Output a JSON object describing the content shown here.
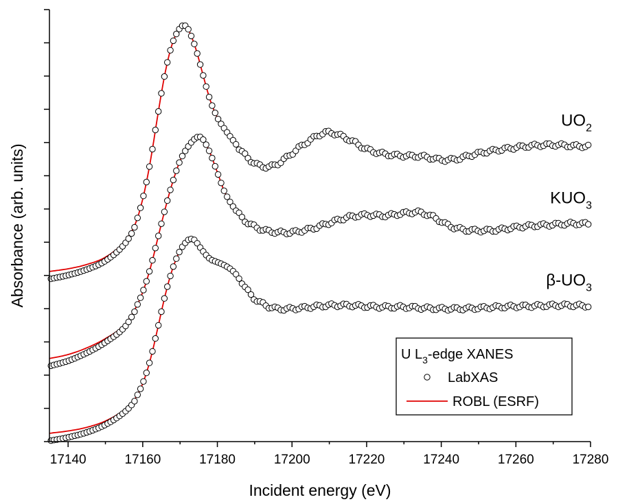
{
  "chart_data": {
    "type": "line",
    "title": "",
    "xlabel": "Incident energy  (eV)",
    "ylabel": "Absorbance (arb. units)",
    "xlim": [
      17135,
      17280
    ],
    "ylim": [
      0,
      13
    ],
    "x_ticks": [
      17140,
      17160,
      17180,
      17200,
      17220,
      17240,
      17260,
      17280
    ],
    "y_tick_labels_shown": false,
    "legend": {
      "title": "U L3-edge XANES",
      "title_parts": [
        "U L",
        "3",
        "-edge XANES"
      ],
      "position": "bottom-right",
      "entries": [
        {
          "name": "LabXAS",
          "marker": "open-circle",
          "color": "#000000"
        },
        {
          "name": "ROBL (ESRF)",
          "marker": "line",
          "color": "#e00000"
        }
      ]
    },
    "series": [
      {
        "name": "UO2",
        "label_parts": [
          "UO",
          "2",
          ""
        ],
        "offset": 5,
        "points": [
          [
            17135,
            0.12
          ],
          [
            17140,
            0.2
          ],
          [
            17145,
            0.33
          ],
          [
            17150,
            0.55
          ],
          [
            17155,
            1.0
          ],
          [
            17158,
            1.55
          ],
          [
            17160,
            2.3
          ],
          [
            17162,
            3.4
          ],
          [
            17164,
            4.8
          ],
          [
            17166,
            6.1
          ],
          [
            17168,
            7.0
          ],
          [
            17170,
            7.45
          ],
          [
            17171,
            7.52
          ],
          [
            17172,
            7.45
          ],
          [
            17174,
            6.9
          ],
          [
            17176,
            6.1
          ],
          [
            17178,
            5.3
          ],
          [
            17180,
            4.75
          ],
          [
            17182,
            4.4
          ],
          [
            17184,
            4.1
          ],
          [
            17186,
            3.8
          ],
          [
            17188,
            3.55
          ],
          [
            17190,
            3.38
          ],
          [
            17192,
            3.28
          ],
          [
            17195,
            3.3
          ],
          [
            17198,
            3.5
          ],
          [
            17202,
            3.85
          ],
          [
            17206,
            4.15
          ],
          [
            17209,
            4.3
          ],
          [
            17212,
            4.25
          ],
          [
            17216,
            4.05
          ],
          [
            17220,
            3.8
          ],
          [
            17225,
            3.65
          ],
          [
            17230,
            3.6
          ],
          [
            17235,
            3.58
          ],
          [
            17240,
            3.48
          ],
          [
            17244,
            3.5
          ],
          [
            17248,
            3.62
          ],
          [
            17252,
            3.72
          ],
          [
            17258,
            3.82
          ],
          [
            17264,
            3.9
          ],
          [
            17270,
            3.93
          ],
          [
            17275,
            3.9
          ],
          [
            17280,
            3.88
          ]
        ]
      },
      {
        "name": "KUO3",
        "label_parts": [
          "KUO",
          "3",
          ""
        ],
        "offset": 2.5,
        "points": [
          [
            17135,
            0.0
          ],
          [
            17140,
            0.12
          ],
          [
            17145,
            0.32
          ],
          [
            17150,
            0.6
          ],
          [
            17155,
            1.0
          ],
          [
            17158,
            1.5
          ],
          [
            17160,
            2.0
          ],
          [
            17162,
            2.7
          ],
          [
            17164,
            3.6
          ],
          [
            17166,
            4.5
          ],
          [
            17168,
            5.3
          ],
          [
            17170,
            5.95
          ],
          [
            17172,
            6.35
          ],
          [
            17174,
            6.62
          ],
          [
            17175,
            6.67
          ],
          [
            17176,
            6.62
          ],
          [
            17178,
            6.2
          ],
          [
            17180,
            5.6
          ],
          [
            17182,
            5.0
          ],
          [
            17185,
            4.45
          ],
          [
            17188,
            4.1
          ],
          [
            17192,
            3.88
          ],
          [
            17196,
            3.8
          ],
          [
            17200,
            3.8
          ],
          [
            17205,
            3.9
          ],
          [
            17210,
            4.08
          ],
          [
            17215,
            4.25
          ],
          [
            17220,
            4.32
          ],
          [
            17225,
            4.3
          ],
          [
            17230,
            4.37
          ],
          [
            17234,
            4.4
          ],
          [
            17238,
            4.25
          ],
          [
            17242,
            4.0
          ],
          [
            17246,
            3.88
          ],
          [
            17250,
            3.85
          ],
          [
            17255,
            3.87
          ],
          [
            17260,
            3.95
          ],
          [
            17265,
            4.0
          ],
          [
            17270,
            4.03
          ],
          [
            17275,
            4.06
          ],
          [
            17280,
            4.05
          ]
        ]
      },
      {
        "name": "β-UO3",
        "label_parts": [
          "β-UO",
          "3",
          ""
        ],
        "offset": 0,
        "points": [
          [
            17135,
            0.25
          ],
          [
            17140,
            0.32
          ],
          [
            17145,
            0.43
          ],
          [
            17150,
            0.62
          ],
          [
            17155,
            0.95
          ],
          [
            17158,
            1.3
          ],
          [
            17160,
            1.75
          ],
          [
            17162,
            2.45
          ],
          [
            17164,
            3.4
          ],
          [
            17166,
            4.4
          ],
          [
            17168,
            5.2
          ],
          [
            17170,
            5.75
          ],
          [
            17172,
            6.05
          ],
          [
            17173,
            6.1
          ],
          [
            17174,
            6.05
          ],
          [
            17176,
            5.75
          ],
          [
            17178,
            5.5
          ],
          [
            17180,
            5.4
          ],
          [
            17182,
            5.3
          ],
          [
            17184,
            5.15
          ],
          [
            17186,
            4.9
          ],
          [
            17188,
            4.55
          ],
          [
            17190,
            4.3
          ],
          [
            17193,
            4.1
          ],
          [
            17196,
            4.0
          ],
          [
            17200,
            4.0
          ],
          [
            17205,
            4.05
          ],
          [
            17210,
            4.1
          ],
          [
            17215,
            4.1
          ],
          [
            17220,
            4.07
          ],
          [
            17225,
            4.05
          ],
          [
            17230,
            4.05
          ],
          [
            17235,
            4.02
          ],
          [
            17240,
            4.0
          ],
          [
            17245,
            4.0
          ],
          [
            17250,
            4.02
          ],
          [
            17255,
            4.05
          ],
          [
            17260,
            4.07
          ],
          [
            17265,
            4.08
          ],
          [
            17270,
            4.1
          ],
          [
            17275,
            4.1
          ],
          [
            17280,
            4.08
          ]
        ]
      }
    ]
  }
}
